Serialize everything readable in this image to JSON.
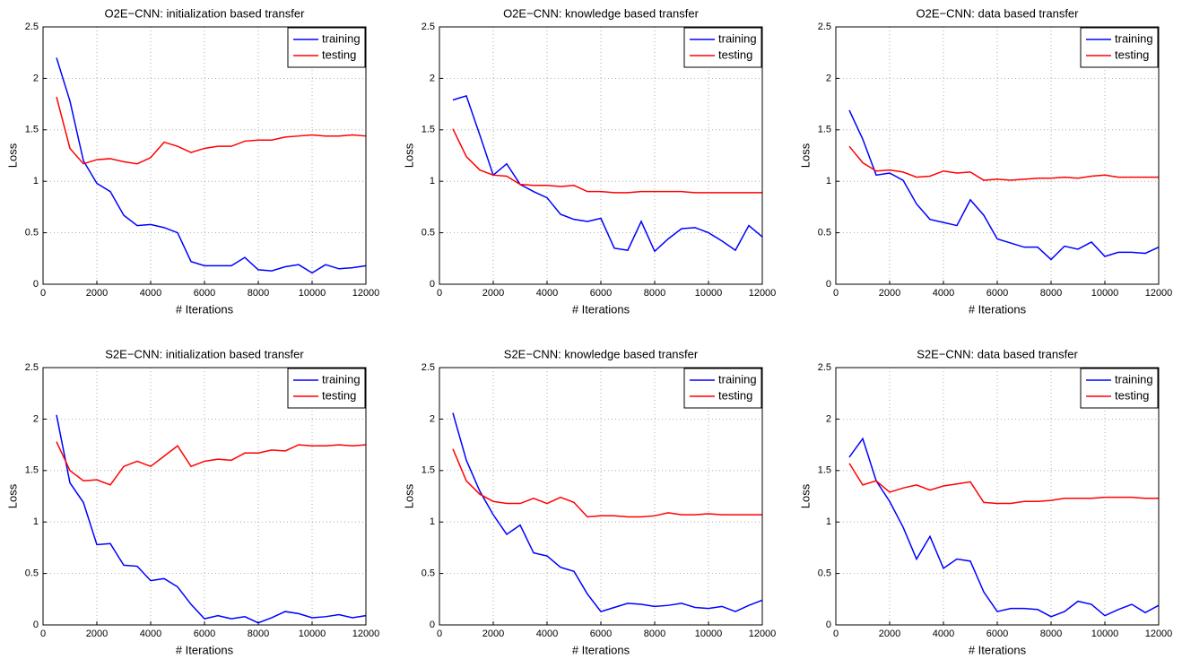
{
  "chart_data": [
    {
      "type": "line",
      "title": "O2E−CNN: initialization based transfer",
      "xlabel": "# Iterations",
      "ylabel": "Loss",
      "x": [
        500,
        1000,
        1500,
        2000,
        2500,
        3000,
        3500,
        4000,
        4500,
        5000,
        5500,
        6000,
        6500,
        7000,
        7500,
        8000,
        8500,
        9000,
        9500,
        10000,
        10500,
        11000,
        11500,
        12000
      ],
      "series": [
        {
          "name": "training",
          "color": "#0000ff",
          "values": [
            2.2,
            1.78,
            1.2,
            0.98,
            0.9,
            0.67,
            0.57,
            0.58,
            0.55,
            0.5,
            0.22,
            0.18,
            0.18,
            0.18,
            0.26,
            0.14,
            0.13,
            0.17,
            0.19,
            0.11,
            0.19,
            0.15,
            0.16,
            0.18
          ]
        },
        {
          "name": "testing",
          "color": "#ff0000",
          "values": [
            1.82,
            1.32,
            1.17,
            1.21,
            1.22,
            1.19,
            1.17,
            1.23,
            1.38,
            1.34,
            1.28,
            1.32,
            1.34,
            1.34,
            1.39,
            1.4,
            1.4,
            1.43,
            1.44,
            1.45,
            1.44,
            1.44,
            1.45,
            1.44
          ]
        }
      ],
      "xlim": [
        0,
        12000
      ],
      "xticks": [
        0,
        2000,
        4000,
        6000,
        8000,
        10000,
        12000
      ],
      "ylim": [
        0,
        2.5
      ],
      "yticks": [
        0,
        0.5,
        1,
        1.5,
        2,
        2.5
      ],
      "grid": true,
      "legend": "upper right"
    },
    {
      "type": "line",
      "title": "O2E−CNN: knowledge based transfer",
      "xlabel": "# Iterations",
      "ylabel": "Loss",
      "x": [
        500,
        1000,
        1500,
        2000,
        2500,
        3000,
        3500,
        4000,
        4500,
        5000,
        5500,
        6000,
        6500,
        7000,
        7500,
        8000,
        8500,
        9000,
        9500,
        10000,
        10500,
        11000,
        11500,
        12000
      ],
      "series": [
        {
          "name": "training",
          "color": "#0000ff",
          "values": [
            1.79,
            1.83,
            1.45,
            1.06,
            1.17,
            0.97,
            0.9,
            0.84,
            0.68,
            0.63,
            0.61,
            0.64,
            0.35,
            0.33,
            0.61,
            0.32,
            0.44,
            0.54,
            0.55,
            0.5,
            0.42,
            0.33,
            0.57,
            0.46
          ]
        },
        {
          "name": "testing",
          "color": "#ff0000",
          "values": [
            1.51,
            1.24,
            1.11,
            1.06,
            1.05,
            0.97,
            0.96,
            0.96,
            0.95,
            0.96,
            0.9,
            0.9,
            0.89,
            0.89,
            0.9,
            0.9,
            0.9,
            0.9,
            0.89,
            0.89,
            0.89,
            0.89,
            0.89,
            0.89
          ]
        }
      ],
      "xlim": [
        0,
        12000
      ],
      "xticks": [
        0,
        2000,
        4000,
        6000,
        8000,
        10000,
        12000
      ],
      "ylim": [
        0,
        2.5
      ],
      "yticks": [
        0,
        0.5,
        1,
        1.5,
        2,
        2.5
      ],
      "grid": true,
      "legend": "upper right"
    },
    {
      "type": "line",
      "title": "O2E−CNN: data based transfer",
      "xlabel": "# Iterations",
      "ylabel": "Loss",
      "x": [
        500,
        1000,
        1500,
        2000,
        2500,
        3000,
        3500,
        4000,
        4500,
        5000,
        5500,
        6000,
        6500,
        7000,
        7500,
        8000,
        8500,
        9000,
        9500,
        10000,
        10500,
        11000,
        11500,
        12000
      ],
      "series": [
        {
          "name": "training",
          "color": "#0000ff",
          "values": [
            1.69,
            1.41,
            1.06,
            1.08,
            1.01,
            0.78,
            0.63,
            0.6,
            0.57,
            0.82,
            0.67,
            0.44,
            0.4,
            0.36,
            0.36,
            0.24,
            0.37,
            0.34,
            0.41,
            0.27,
            0.31,
            0.31,
            0.3,
            0.36
          ]
        },
        {
          "name": "testing",
          "color": "#ff0000",
          "values": [
            1.34,
            1.18,
            1.1,
            1.11,
            1.09,
            1.04,
            1.05,
            1.1,
            1.08,
            1.09,
            1.01,
            1.02,
            1.01,
            1.02,
            1.03,
            1.03,
            1.04,
            1.03,
            1.05,
            1.06,
            1.04,
            1.04,
            1.04,
            1.04
          ]
        }
      ],
      "xlim": [
        0,
        12000
      ],
      "xticks": [
        0,
        2000,
        4000,
        6000,
        8000,
        10000,
        12000
      ],
      "ylim": [
        0,
        2.5
      ],
      "yticks": [
        0,
        0.5,
        1,
        1.5,
        2,
        2.5
      ],
      "grid": true,
      "legend": "upper right"
    },
    {
      "type": "line",
      "title": "S2E−CNN: initialization based transfer",
      "xlabel": "# Iterations",
      "ylabel": "Loss",
      "x": [
        500,
        1000,
        1500,
        2000,
        2500,
        3000,
        3500,
        4000,
        4500,
        5000,
        5500,
        6000,
        6500,
        7000,
        7500,
        8000,
        8500,
        9000,
        9500,
        10000,
        10500,
        11000,
        11500,
        12000
      ],
      "series": [
        {
          "name": "training",
          "color": "#0000ff",
          "values": [
            2.04,
            1.38,
            1.19,
            0.78,
            0.79,
            0.58,
            0.57,
            0.43,
            0.45,
            0.37,
            0.2,
            0.06,
            0.09,
            0.06,
            0.08,
            0.02,
            0.07,
            0.13,
            0.11,
            0.07,
            0.08,
            0.1,
            0.07,
            0.09
          ]
        },
        {
          "name": "testing",
          "color": "#ff0000",
          "values": [
            1.78,
            1.5,
            1.4,
            1.41,
            1.36,
            1.54,
            1.59,
            1.54,
            1.64,
            1.74,
            1.54,
            1.59,
            1.61,
            1.6,
            1.67,
            1.67,
            1.7,
            1.69,
            1.75,
            1.74,
            1.74,
            1.75,
            1.74,
            1.75
          ]
        }
      ],
      "xlim": [
        0,
        12000
      ],
      "xticks": [
        0,
        2000,
        4000,
        6000,
        8000,
        10000,
        12000
      ],
      "ylim": [
        0,
        2.5
      ],
      "yticks": [
        0,
        0.5,
        1,
        1.5,
        2,
        2.5
      ],
      "grid": true,
      "legend": "upper right"
    },
    {
      "type": "line",
      "title": "S2E−CNN: knowledge based transfer",
      "xlabel": "# Iterations",
      "ylabel": "Loss",
      "x": [
        500,
        1000,
        1500,
        2000,
        2500,
        3000,
        3500,
        4000,
        4500,
        5000,
        5500,
        6000,
        6500,
        7000,
        7500,
        8000,
        8500,
        9000,
        9500,
        10000,
        10500,
        11000,
        11500,
        12000
      ],
      "series": [
        {
          "name": "training",
          "color": "#0000ff",
          "values": [
            2.06,
            1.6,
            1.3,
            1.07,
            0.88,
            0.97,
            0.7,
            0.67,
            0.56,
            0.52,
            0.3,
            0.13,
            0.17,
            0.21,
            0.2,
            0.18,
            0.19,
            0.21,
            0.17,
            0.16,
            0.18,
            0.13,
            0.19,
            0.24
          ]
        },
        {
          "name": "testing",
          "color": "#ff0000",
          "values": [
            1.71,
            1.4,
            1.27,
            1.2,
            1.18,
            1.18,
            1.23,
            1.18,
            1.24,
            1.19,
            1.05,
            1.06,
            1.06,
            1.05,
            1.05,
            1.06,
            1.09,
            1.07,
            1.07,
            1.08,
            1.07,
            1.07,
            1.07,
            1.07
          ]
        }
      ],
      "xlim": [
        0,
        12000
      ],
      "xticks": [
        0,
        2000,
        4000,
        6000,
        8000,
        10000,
        12000
      ],
      "ylim": [
        0,
        2.5
      ],
      "yticks": [
        0,
        0.5,
        1,
        1.5,
        2,
        2.5
      ],
      "grid": true,
      "legend": "upper right"
    },
    {
      "type": "line",
      "title": "S2E−CNN: data based transfer",
      "xlabel": "# Iterations",
      "ylabel": "Loss",
      "x": [
        500,
        1000,
        1500,
        2000,
        2500,
        3000,
        3500,
        4000,
        4500,
        5000,
        5500,
        6000,
        6500,
        7000,
        7500,
        8000,
        8500,
        9000,
        9500,
        10000,
        10500,
        11000,
        11500,
        12000
      ],
      "series": [
        {
          "name": "training",
          "color": "#0000ff",
          "values": [
            1.63,
            1.81,
            1.4,
            1.2,
            0.95,
            0.64,
            0.86,
            0.55,
            0.64,
            0.62,
            0.32,
            0.13,
            0.16,
            0.16,
            0.15,
            0.08,
            0.13,
            0.23,
            0.2,
            0.09,
            0.15,
            0.2,
            0.12,
            0.19
          ]
        },
        {
          "name": "testing",
          "color": "#ff0000",
          "values": [
            1.57,
            1.36,
            1.4,
            1.29,
            1.33,
            1.36,
            1.31,
            1.35,
            1.37,
            1.39,
            1.19,
            1.18,
            1.18,
            1.2,
            1.2,
            1.21,
            1.23,
            1.23,
            1.23,
            1.24,
            1.24,
            1.24,
            1.23,
            1.23
          ]
        }
      ],
      "xlim": [
        0,
        12000
      ],
      "xticks": [
        0,
        2000,
        4000,
        6000,
        8000,
        10000,
        12000
      ],
      "ylim": [
        0,
        2.5
      ],
      "yticks": [
        0,
        0.5,
        1,
        1.5,
        2,
        2.5
      ],
      "grid": true,
      "legend": "upper right"
    }
  ]
}
